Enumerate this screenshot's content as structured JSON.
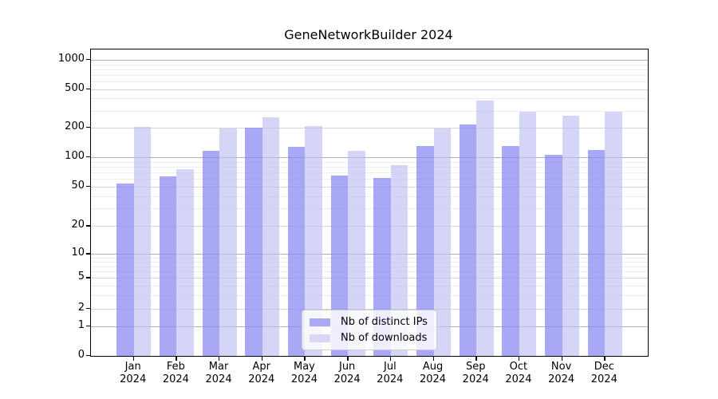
{
  "chart_data": {
    "type": "bar",
    "title": "GeneNetworkBuilder 2024",
    "categories": [
      "Jan 2024",
      "Feb 2024",
      "Mar 2024",
      "Apr 2024",
      "May 2024",
      "Jun 2024",
      "Jul 2024",
      "Aug 2024",
      "Sep 2024",
      "Oct 2024",
      "Nov 2024",
      "Dec 2024"
    ],
    "series": [
      {
        "name": "Nb of distinct IPs",
        "color": "#8686f4",
        "opacity": 0.72,
        "legend_color": "#a9a9f5",
        "values": [
          54,
          64,
          117,
          200,
          128,
          65,
          61,
          130,
          215,
          131,
          105,
          118
        ]
      },
      {
        "name": "Nb of downloads",
        "color": "#bcbcf2",
        "opacity": 0.62,
        "legend_color": "#d8d8f6",
        "values": [
          203,
          76,
          195,
          258,
          209,
          117,
          83,
          195,
          380,
          292,
          265,
          290
        ]
      }
    ],
    "y_axis": {
      "scale": "symlog",
      "ticks": [
        0,
        1,
        2,
        5,
        10,
        20,
        50,
        100,
        200,
        500,
        1000
      ],
      "minor_ticks": [
        3,
        4,
        6,
        7,
        8,
        9,
        30,
        40,
        60,
        70,
        80,
        90,
        300,
        400,
        600,
        700,
        800,
        900
      ],
      "range": [
        0,
        1300
      ]
    },
    "legend": {
      "position": "lower center"
    },
    "grid": true,
    "colors": {
      "grid_major": "#b0b0b0",
      "grid_mid": "#d6d6d6",
      "grid_minor": "#ededed",
      "axis": "#000000"
    }
  }
}
